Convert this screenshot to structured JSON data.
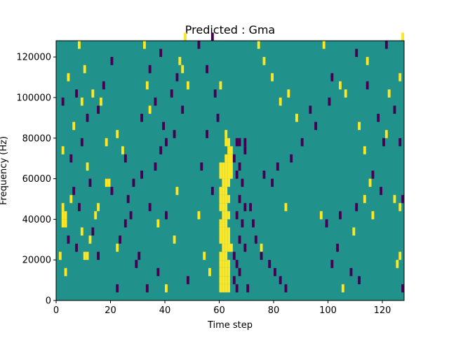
{
  "chart_data": {
    "type": "heatmap",
    "title": "Predicted : Gma",
    "xlabel": "Time step",
    "ylabel": "Frequency (Hz)",
    "xlim": [
      0,
      128
    ],
    "ylim": [
      0,
      128000
    ],
    "xticks": [
      0,
      20,
      40,
      60,
      80,
      100,
      120
    ],
    "yticks": [
      0,
      20000,
      40000,
      60000,
      80000,
      100000,
      120000
    ],
    "background_value": 0,
    "colormap": {
      "-1": "#440154",
      "0": "#21918c",
      "1": "#fde725"
    },
    "cell_width": 1,
    "cell_height": 4000,
    "cells": [
      [
        60,
        4000,
        1
      ],
      [
        61,
        4000,
        1
      ],
      [
        62,
        4000,
        1
      ],
      [
        63,
        4000,
        1
      ],
      [
        60,
        8000,
        1
      ],
      [
        61,
        8000,
        1
      ],
      [
        62,
        8000,
        1
      ],
      [
        63,
        8000,
        1
      ],
      [
        60,
        12000,
        1
      ],
      [
        61,
        12000,
        1
      ],
      [
        62,
        12000,
        1
      ],
      [
        63,
        12000,
        1
      ],
      [
        60,
        16000,
        1
      ],
      [
        61,
        16000,
        1
      ],
      [
        62,
        16000,
        1
      ],
      [
        63,
        16000,
        1
      ],
      [
        60,
        20000,
        1
      ],
      [
        61,
        20000,
        1
      ],
      [
        62,
        20000,
        1
      ],
      [
        61,
        24000,
        1
      ],
      [
        62,
        24000,
        1
      ],
      [
        63,
        24000,
        1
      ],
      [
        64,
        24000,
        1
      ],
      [
        60,
        28000,
        1
      ],
      [
        61,
        28000,
        1
      ],
      [
        62,
        28000,
        1
      ],
      [
        63,
        28000,
        1
      ],
      [
        60,
        32000,
        1
      ],
      [
        61,
        32000,
        1
      ],
      [
        62,
        32000,
        1
      ],
      [
        63,
        32000,
        1
      ],
      [
        60,
        36000,
        1
      ],
      [
        61,
        36000,
        1
      ],
      [
        62,
        36000,
        1
      ],
      [
        61,
        40000,
        1
      ],
      [
        62,
        40000,
        1
      ],
      [
        63,
        40000,
        1
      ],
      [
        60,
        44000,
        1
      ],
      [
        61,
        44000,
        1
      ],
      [
        62,
        44000,
        1
      ],
      [
        60,
        48000,
        1
      ],
      [
        61,
        48000,
        1
      ],
      [
        62,
        48000,
        1
      ],
      [
        63,
        48000,
        1
      ],
      [
        60,
        52000,
        1
      ],
      [
        61,
        52000,
        1
      ],
      [
        62,
        52000,
        1
      ],
      [
        61,
        56000,
        1
      ],
      [
        62,
        56000,
        1
      ],
      [
        63,
        56000,
        1
      ],
      [
        60,
        60000,
        1
      ],
      [
        61,
        60000,
        1
      ],
      [
        62,
        60000,
        1
      ],
      [
        63,
        60000,
        1
      ],
      [
        64,
        60000,
        1
      ],
      [
        60,
        64000,
        1
      ],
      [
        61,
        64000,
        1
      ],
      [
        62,
        64000,
        1
      ],
      [
        63,
        64000,
        1
      ],
      [
        64,
        64000,
        1
      ],
      [
        62,
        68000,
        1
      ],
      [
        63,
        68000,
        1
      ],
      [
        64,
        68000,
        1
      ],
      [
        63,
        72000,
        1
      ],
      [
        64,
        72000,
        1
      ],
      [
        62,
        76000,
        1
      ],
      [
        63,
        76000,
        1
      ],
      [
        62,
        80000,
        1
      ],
      [
        66,
        76000,
        -1
      ],
      [
        67,
        76000,
        -1
      ],
      [
        69,
        76000,
        -1
      ],
      [
        69,
        72000,
        -1
      ],
      [
        65,
        68000,
        -1
      ],
      [
        67,
        64000,
        -1
      ],
      [
        66,
        60000,
        -1
      ],
      [
        68,
        56000,
        -1
      ],
      [
        67,
        48000,
        -1
      ],
      [
        69,
        44000,
        -1
      ],
      [
        66,
        40000,
        -1
      ],
      [
        68,
        36000,
        -1
      ],
      [
        67,
        28000,
        -1
      ],
      [
        69,
        24000,
        -1
      ],
      [
        65,
        20000,
        -1
      ],
      [
        66,
        16000,
        -1
      ],
      [
        67,
        12000,
        -1
      ],
      [
        65,
        8000,
        -1
      ],
      [
        66,
        4000,
        -1
      ],
      [
        70,
        4000,
        -1
      ],
      [
        2,
        36000,
        1
      ],
      [
        3,
        36000,
        1
      ],
      [
        2,
        40000,
        1
      ],
      [
        3,
        40000,
        1
      ],
      [
        2,
        44000,
        1
      ],
      [
        18,
        56000,
        1
      ],
      [
        19,
        56000,
        1
      ],
      [
        10,
        20000,
        1
      ],
      [
        11,
        20000,
        1
      ],
      [
        12,
        28000,
        1
      ],
      [
        1,
        20000,
        1
      ],
      [
        3,
        12000,
        1
      ],
      [
        5,
        48000,
        1
      ],
      [
        9,
        32000,
        1
      ],
      [
        14,
        40000,
        1
      ],
      [
        15,
        44000,
        1
      ],
      [
        22,
        24000,
        1
      ],
      [
        24,
        72000,
        1
      ],
      [
        22,
        80000,
        1
      ],
      [
        18,
        76000,
        1
      ],
      [
        11,
        64000,
        1
      ],
      [
        6,
        84000,
        1
      ],
      [
        2,
        72000,
        1
      ],
      [
        9,
        96000,
        1
      ],
      [
        13,
        100000,
        1
      ],
      [
        4,
        108000,
        1
      ],
      [
        10,
        112000,
        1
      ],
      [
        8,
        124000,
        1
      ],
      [
        16,
        96000,
        1
      ],
      [
        32,
        124000,
        1
      ],
      [
        33,
        104000,
        1
      ],
      [
        34,
        92000,
        1
      ],
      [
        45,
        116000,
        1
      ],
      [
        46,
        112000,
        1
      ],
      [
        48,
        104000,
        1
      ],
      [
        47,
        128000,
        1
      ],
      [
        60,
        104000,
        1
      ],
      [
        74,
        124000,
        1
      ],
      [
        76,
        116000,
        1
      ],
      [
        79,
        108000,
        1
      ],
      [
        82,
        96000,
        1
      ],
      [
        85,
        100000,
        1
      ],
      [
        88,
        88000,
        1
      ],
      [
        98,
        124000,
        1
      ],
      [
        104,
        104000,
        1
      ],
      [
        106,
        100000,
        1
      ],
      [
        111,
        84000,
        1
      ],
      [
        113,
        72000,
        1
      ],
      [
        115,
        56000,
        1
      ],
      [
        113,
        48000,
        1
      ],
      [
        116,
        40000,
        1
      ],
      [
        109,
        32000,
        1
      ],
      [
        105,
        4000,
        1
      ],
      [
        40,
        4000,
        1
      ],
      [
        43,
        28000,
        1
      ],
      [
        44,
        52000,
        1
      ],
      [
        37,
        36000,
        1
      ],
      [
        52,
        40000,
        1
      ],
      [
        54,
        20000,
        1
      ],
      [
        56,
        12000,
        1
      ],
      [
        75,
        24000,
        1
      ],
      [
        84,
        44000,
        1
      ],
      [
        97,
        40000,
        1
      ],
      [
        124,
        48000,
        1
      ],
      [
        126,
        44000,
        1
      ],
      [
        125,
        16000,
        1
      ],
      [
        126,
        20000,
        1
      ],
      [
        122,
        100000,
        1
      ],
      [
        126,
        108000,
        1
      ],
      [
        127,
        128000,
        1
      ],
      [
        121,
        80000,
        1
      ],
      [
        114,
        116000,
        1
      ],
      [
        22,
        4000,
        -1
      ],
      [
        33,
        4000,
        -1
      ],
      [
        48,
        8000,
        -1
      ],
      [
        37,
        12000,
        -1
      ],
      [
        29,
        16000,
        -1
      ],
      [
        30,
        20000,
        -1
      ],
      [
        23,
        28000,
        -1
      ],
      [
        25,
        36000,
        -1
      ],
      [
        27,
        40000,
        -1
      ],
      [
        34,
        44000,
        -1
      ],
      [
        40,
        40000,
        -1
      ],
      [
        26,
        48000,
        -1
      ],
      [
        20,
        52000,
        -1
      ],
      [
        28,
        56000,
        -1
      ],
      [
        31,
        60000,
        -1
      ],
      [
        36,
        64000,
        -1
      ],
      [
        25,
        68000,
        -1
      ],
      [
        38,
        72000,
        -1
      ],
      [
        40,
        76000,
        -1
      ],
      [
        43,
        80000,
        -1
      ],
      [
        39,
        84000,
        -1
      ],
      [
        31,
        88000,
        -1
      ],
      [
        46,
        92000,
        -1
      ],
      [
        36,
        96000,
        -1
      ],
      [
        42,
        100000,
        -1
      ],
      [
        44,
        108000,
        -1
      ],
      [
        34,
        112000,
        -1
      ],
      [
        38,
        120000,
        -1
      ],
      [
        52,
        124000,
        -1
      ],
      [
        57,
        128000,
        -1
      ],
      [
        55,
        112000,
        -1
      ],
      [
        58,
        100000,
        -1
      ],
      [
        59,
        88000,
        -1
      ],
      [
        55,
        80000,
        -1
      ],
      [
        53,
        64000,
        -1
      ],
      [
        57,
        52000,
        -1
      ],
      [
        71,
        44000,
        -1
      ],
      [
        72,
        36000,
        -1
      ],
      [
        73,
        28000,
        -1
      ],
      [
        75,
        20000,
        -1
      ],
      [
        78,
        16000,
        -1
      ],
      [
        80,
        12000,
        -1
      ],
      [
        82,
        8000,
        -1
      ],
      [
        84,
        4000,
        -1
      ],
      [
        76,
        60000,
        -1
      ],
      [
        79,
        56000,
        -1
      ],
      [
        81,
        64000,
        -1
      ],
      [
        86,
        68000,
        -1
      ],
      [
        90,
        76000,
        -1
      ],
      [
        95,
        84000,
        -1
      ],
      [
        93,
        92000,
        -1
      ],
      [
        100,
        96000,
        -1
      ],
      [
        101,
        108000,
        -1
      ],
      [
        110,
        120000,
        -1
      ],
      [
        114,
        104000,
        -1
      ],
      [
        118,
        88000,
        -1
      ],
      [
        120,
        76000,
        -1
      ],
      [
        116,
        60000,
        -1
      ],
      [
        119,
        52000,
        -1
      ],
      [
        110,
        44000,
        -1
      ],
      [
        104,
        40000,
        -1
      ],
      [
        99,
        36000,
        -1
      ],
      [
        103,
        24000,
        -1
      ],
      [
        101,
        16000,
        -1
      ],
      [
        108,
        12000,
        -1
      ],
      [
        111,
        8000,
        -1
      ],
      [
        127,
        4000,
        -1
      ],
      [
        126,
        76000,
        -1
      ],
      [
        127,
        48000,
        -1
      ],
      [
        124,
        92000,
        -1
      ],
      [
        121,
        124000,
        -1
      ],
      [
        6,
        52000,
        -1
      ],
      [
        8,
        44000,
        -1
      ],
      [
        4,
        28000,
        -1
      ],
      [
        7,
        24000,
        -1
      ],
      [
        13,
        32000,
        -1
      ],
      [
        15,
        20000,
        -1
      ],
      [
        12,
        56000,
        -1
      ],
      [
        5,
        68000,
        -1
      ],
      [
        9,
        76000,
        -1
      ],
      [
        11,
        88000,
        -1
      ],
      [
        15,
        92000,
        -1
      ],
      [
        17,
        104000,
        -1
      ],
      [
        20,
        116000,
        -1
      ],
      [
        2,
        96000,
        -1
      ],
      [
        7,
        100000,
        -1
      ]
    ]
  }
}
